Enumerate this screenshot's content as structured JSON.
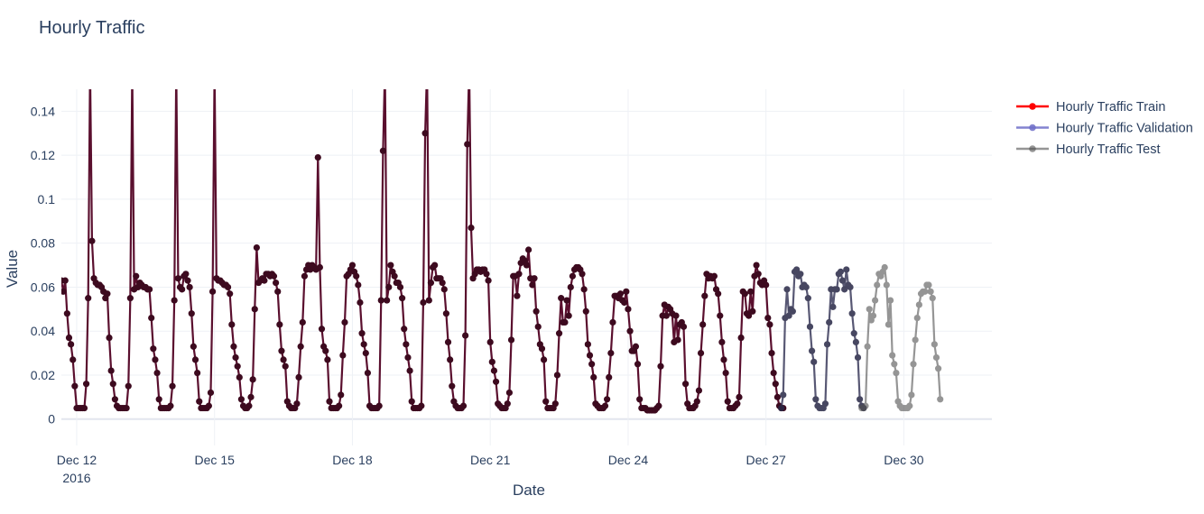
{
  "chart_data": {
    "type": "line",
    "title": "Hourly Traffic",
    "xlabel": "Date",
    "ylabel": "Value",
    "ylim": [
      -0.012,
      0.15
    ],
    "xlim": [
      "2016-12-11 16:00",
      "2016-12-31 22:00"
    ],
    "x_ticks": [
      {
        "value": "2016-12-12",
        "label": "Dec 12",
        "sublabel": "2016"
      },
      {
        "value": "2016-12-15",
        "label": "Dec 15"
      },
      {
        "value": "2016-12-18",
        "label": "Dec 18"
      },
      {
        "value": "2016-12-21",
        "label": "Dec 21"
      },
      {
        "value": "2016-12-24",
        "label": "Dec 24"
      },
      {
        "value": "2016-12-27",
        "label": "Dec 27"
      },
      {
        "value": "2016-12-30",
        "label": "Dec 30"
      }
    ],
    "y_ticks": [
      {
        "value": 0,
        "label": "0"
      },
      {
        "value": 0.02,
        "label": "0.02"
      },
      {
        "value": 0.04,
        "label": "0.04"
      },
      {
        "value": 0.06,
        "label": "0.06"
      },
      {
        "value": 0.08,
        "label": "0.08"
      },
      {
        "value": 0.1,
        "label": "0.1"
      },
      {
        "value": 0.12,
        "label": "0.12"
      },
      {
        "value": 0.14,
        "label": "0.14"
      }
    ],
    "grid": true,
    "legend_position": "top-right",
    "start": "2016-12-11 16:00",
    "step_hours": 1,
    "series": [
      {
        "name": "Hourly Traffic Train",
        "color": "#ff0000",
        "line_color": "#5a0f2e",
        "marker_color": "#3d0a1f",
        "opacity": 1.0,
        "start_index": 0,
        "values": [
          0.063,
          0.058,
          0.063,
          0.048,
          0.037,
          0.034,
          0.027,
          0.015,
          0.005,
          0.005,
          0.005,
          0.005,
          0.005,
          0.016,
          0.055,
          0.16,
          0.081,
          0.064,
          0.062,
          0.061,
          0.061,
          0.06,
          0.058,
          0.055,
          0.057,
          0.037,
          0.022,
          0.016,
          0.009,
          0.006,
          0.005,
          0.005,
          0.005,
          0.005,
          0.005,
          0.015,
          0.055,
          0.16,
          0.059,
          0.065,
          0.06,
          0.062,
          0.061,
          0.06,
          0.06,
          0.059,
          0.059,
          0.046,
          0.032,
          0.027,
          0.021,
          0.009,
          0.005,
          0.005,
          0.005,
          0.005,
          0.005,
          0.006,
          0.015,
          0.054,
          0.16,
          0.064,
          0.06,
          0.059,
          0.065,
          0.066,
          0.063,
          0.06,
          0.048,
          0.033,
          0.027,
          0.021,
          0.008,
          0.005,
          0.005,
          0.005,
          0.005,
          0.006,
          0.012,
          0.058,
          0.16,
          0.064,
          0.063,
          0.063,
          0.062,
          0.061,
          0.061,
          0.06,
          0.057,
          0.043,
          0.033,
          0.028,
          0.024,
          0.019,
          0.009,
          0.006,
          0.005,
          0.005,
          0.006,
          0.01,
          0.018,
          0.05,
          0.078,
          0.062,
          0.063,
          0.064,
          0.063,
          0.066,
          0.066,
          0.065,
          0.066,
          0.065,
          0.062,
          0.058,
          0.043,
          0.031,
          0.027,
          0.024,
          0.008,
          0.006,
          0.005,
          0.005,
          0.005,
          0.007,
          0.019,
          0.033,
          0.044,
          0.065,
          0.068,
          0.07,
          0.068,
          0.07,
          0.069,
          0.068,
          0.119,
          0.069,
          0.041,
          0.033,
          0.031,
          0.027,
          0.008,
          0.005,
          0.005,
          0.005,
          0.005,
          0.006,
          0.011,
          0.029,
          0.044,
          0.065,
          0.066,
          0.068,
          0.07,
          0.067,
          0.065,
          0.061,
          0.053,
          0.039,
          0.034,
          0.03,
          0.021,
          0.006,
          0.005,
          0.005,
          0.005,
          0.005,
          0.006,
          0.054,
          0.122,
          0.16,
          0.054,
          0.06,
          0.07,
          0.067,
          0.065,
          0.062,
          0.062,
          0.06,
          0.055,
          0.041,
          0.034,
          0.028,
          0.022,
          0.008,
          0.005,
          0.005,
          0.005,
          0.005,
          0.006,
          0.053,
          0.13,
          0.16,
          0.054,
          0.062,
          0.069,
          0.07,
          0.064,
          0.064,
          0.064,
          0.062,
          0.059,
          0.048,
          0.035,
          0.027,
          0.015,
          0.008,
          0.006,
          0.005,
          0.005,
          0.005,
          0.006,
          0.038,
          0.125,
          0.16,
          0.087,
          0.064,
          0.066,
          0.068,
          0.068,
          0.067,
          0.068,
          0.068,
          0.066,
          0.063,
          0.035,
          0.026,
          0.022,
          0.017,
          0.007,
          0.006,
          0.005,
          0.005,
          0.005,
          0.007,
          0.012,
          0.036,
          0.065,
          0.065,
          0.056,
          0.066,
          0.071,
          0.073,
          0.072,
          0.07,
          0.077,
          0.064,
          0.061,
          0.064,
          0.049,
          0.042,
          0.034,
          0.032,
          0.027,
          0.008,
          0.005,
          0.005,
          0.005,
          0.005,
          0.007,
          0.02,
          0.039,
          0.055,
          0.044,
          0.044,
          0.054,
          0.047,
          0.06,
          0.065,
          0.068,
          0.069,
          0.069,
          0.068,
          0.066,
          0.059,
          0.049,
          0.034,
          0.029,
          0.025,
          0.019,
          0.007,
          0.006,
          0.005,
          0.005,
          0.005,
          0.006,
          0.009,
          0.019,
          0.03,
          0.044,
          0.056,
          0.056,
          0.055,
          0.057,
          0.054,
          0.053,
          0.058,
          0.05,
          0.04,
          0.031,
          0.031,
          0.033,
          0.025,
          0.009,
          0.005,
          0.005,
          0.005,
          0.004,
          0.004,
          0.004,
          0.004,
          0.004,
          0.005,
          0.006,
          0.024,
          0.047,
          0.052,
          0.047,
          0.051,
          0.05,
          0.048,
          0.035,
          0.047,
          0.036,
          0.043,
          0.044,
          0.042,
          0.016,
          0.007,
          0.005,
          0.005,
          0.005,
          0.006,
          0.008,
          0.013,
          0.03,
          0.043,
          0.056,
          0.066,
          0.064,
          0.065,
          0.064,
          0.065,
          0.059,
          0.057,
          0.047,
          0.035,
          0.027,
          0.021,
          0.008,
          0.005,
          0.005,
          0.005,
          0.006,
          0.007,
          0.01,
          0.037,
          0.058,
          0.057,
          0.048,
          0.047,
          0.058,
          0.049,
          0.065,
          0.07,
          0.066,
          0.062,
          0.061,
          0.063,
          0.061,
          0.046,
          0.043,
          0.03,
          0.021,
          0.016,
          0.01,
          0.006,
          0.005,
          0.005
        ]
      },
      {
        "name": "Hourly Traffic Validation",
        "color": "#6e6ec8",
        "line_color": "#3c3c5c",
        "marker_color": "#282846",
        "opacity": 0.85,
        "start_index": 376,
        "values": [
          0.005,
          0.011,
          0.046,
          0.059,
          0.047,
          0.05,
          0.049,
          0.067,
          0.068,
          0.065,
          0.066,
          0.06,
          0.061,
          0.06,
          0.055,
          0.042,
          0.031,
          0.026,
          0.009,
          0.006,
          0.005,
          0.005,
          0.005,
          0.007,
          0.034,
          0.044,
          0.059,
          0.051,
          0.059,
          0.059,
          0.066,
          0.067,
          0.063,
          0.059,
          0.068,
          0.061,
          0.06,
          0.048,
          0.039,
          0.035,
          0.028,
          0.009,
          0.006,
          0.005
        ]
      },
      {
        "name": "Hourly Traffic Test",
        "color": "#505050",
        "line_color": "#505050",
        "marker_color": "#505050",
        "opacity": 0.6,
        "start_index": 418,
        "values": [
          0.005,
          0.005,
          0.006,
          0.033,
          0.05,
          0.045,
          0.047,
          0.054,
          0.061,
          0.066,
          0.065,
          0.067,
          0.069,
          0.061,
          0.043,
          0.054,
          0.029,
          0.025,
          0.021,
          0.008,
          0.006,
          0.005,
          0.005,
          0.005,
          0.005,
          0.006,
          0.011,
          0.025,
          0.036,
          0.046,
          0.052,
          0.057,
          0.058,
          0.058,
          0.061,
          0.061,
          0.058,
          0.055,
          0.034,
          0.028,
          0.023,
          0.009
        ]
      }
    ]
  }
}
